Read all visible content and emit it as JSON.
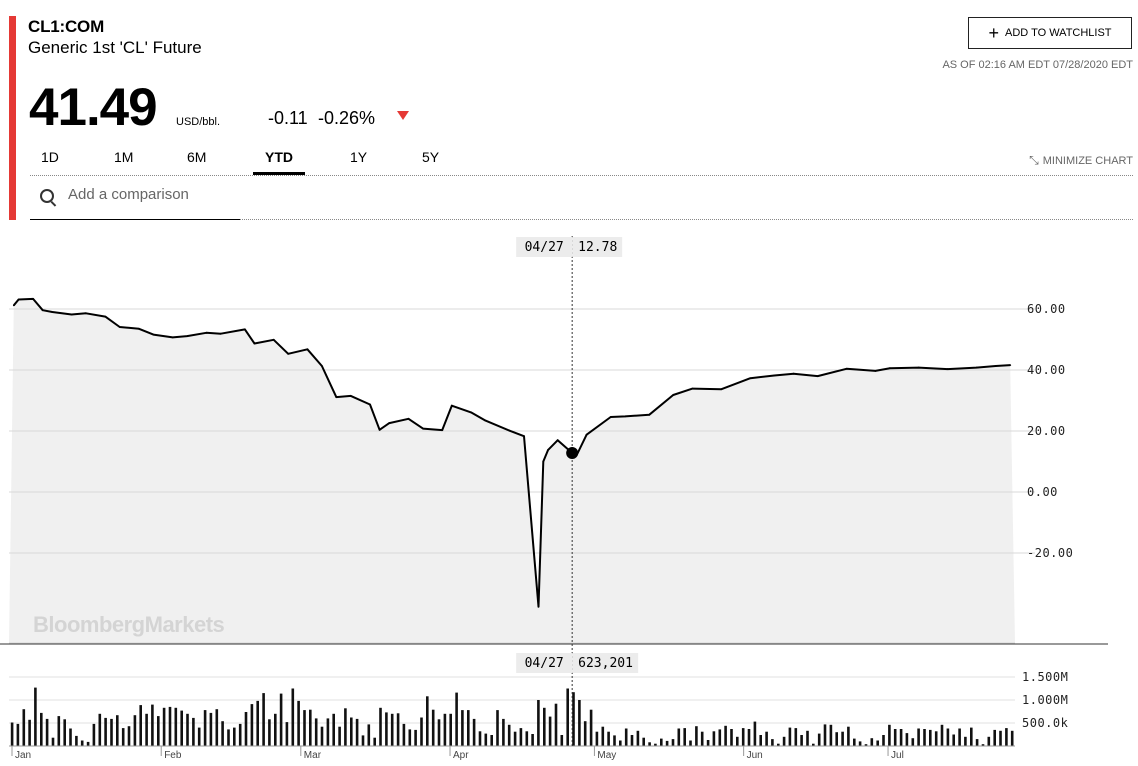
{
  "header": {
    "ticker": "CL1:COM",
    "name": "Generic 1st 'CL' Future",
    "price": "41.49",
    "unit": "USD/bbl.",
    "change": "-0.11",
    "change_pct": "-0.26%",
    "watchlist_label": "ADD TO WATCHLIST",
    "as_of": "AS OF 02:16 AM EDT 07/28/2020 EDT"
  },
  "tabs": [
    {
      "label": "1D",
      "active": false
    },
    {
      "label": "1M",
      "active": false
    },
    {
      "label": "6M",
      "active": false
    },
    {
      "label": "YTD",
      "active": true
    },
    {
      "label": "1Y",
      "active": false
    },
    {
      "label": "5Y",
      "active": false
    }
  ],
  "minimize_label": "MINIMIZE CHART",
  "comparison": {
    "placeholder": "Add a comparison"
  },
  "watermark": "BloombergMarkets",
  "colors": {
    "accent": "#e53935",
    "line": "#000000",
    "area": "#f0f0f0"
  },
  "chart_data": [
    {
      "type": "area",
      "yticks": [
        60,
        40,
        20,
        0,
        -20
      ],
      "ytick_labels": [
        "60.00",
        "40.00",
        "20.00",
        "0.00",
        "-20.00"
      ],
      "ylim": [
        -48,
        76
      ],
      "xtick_labels": [
        "Jan",
        "Feb",
        "Mar",
        "Apr",
        "May",
        "Jun",
        "Jul"
      ],
      "tooltip": {
        "date": "04/27",
        "value": "12.78"
      },
      "grid": true,
      "series": [
        {
          "x": [
            "01/02",
            "01/03",
            "01/06",
            "01/08",
            "01/10",
            "01/14",
            "01/17",
            "01/21",
            "01/24",
            "01/28",
            "01/31",
            "02/04",
            "02/07",
            "02/11",
            "02/14",
            "02/19",
            "02/21",
            "02/25",
            "02/28",
            "03/03",
            "03/06",
            "03/09",
            "03/12",
            "03/16",
            "03/18",
            "03/20",
            "03/24",
            "03/27",
            "03/31",
            "04/02",
            "04/06",
            "04/09",
            "04/14",
            "04/17",
            "04/20",
            "04/21",
            "04/22",
            "04/24",
            "04/27",
            "04/28",
            "04/30",
            "05/05",
            "05/08",
            "05/13",
            "05/18",
            "05/22",
            "05/28",
            "06/03",
            "06/08",
            "06/12",
            "06/17",
            "06/23",
            "06/29",
            "07/02",
            "07/08",
            "07/14",
            "07/20",
            "07/24",
            "07/27"
          ],
          "values": [
            61.2,
            63.1,
            63.3,
            59.6,
            59.0,
            58.2,
            58.6,
            57.5,
            54.1,
            53.5,
            51.6,
            50.7,
            51.1,
            52.2,
            51.9,
            53.3,
            48.7,
            49.9,
            45.3,
            46.8,
            41.3,
            31.1,
            31.5,
            28.7,
            20.4,
            22.6,
            24.0,
            20.8,
            20.3,
            28.3,
            26.1,
            23.4,
            20.1,
            18.3,
            -37.6,
            10.0,
            13.8,
            17.0,
            12.8,
            12.3,
            18.8,
            24.6,
            24.8,
            25.3,
            31.8,
            33.9,
            33.7,
            37.3,
            38.2,
            38.8,
            38.0,
            40.4,
            39.7,
            40.6,
            40.8,
            40.3,
            40.8,
            41.3,
            41.6
          ]
        }
      ]
    },
    {
      "type": "bar",
      "yticks": [
        1500000,
        1000000,
        500000
      ],
      "ytick_labels": [
        "1.500M",
        "1.000M",
        "500.0k"
      ],
      "ylim": [
        0,
        1800000
      ],
      "tooltip": {
        "date": "04/27",
        "value": "623,201"
      },
      "series": [
        {
          "name": "Volume",
          "values": [
            510000,
            480000,
            800000,
            570000,
            1270000,
            720000,
            590000,
            180000,
            650000,
            580000,
            380000,
            220000,
            120000,
            90000,
            480000,
            700000,
            610000,
            590000,
            670000,
            390000,
            430000,
            670000,
            890000,
            700000,
            900000,
            650000,
            830000,
            850000,
            830000,
            770000,
            700000,
            610000,
            400000,
            780000,
            720000,
            800000,
            540000,
            360000,
            400000,
            480000,
            740000,
            910000,
            980000,
            1150000,
            580000,
            700000,
            1140000,
            520000,
            1250000,
            980000,
            780000,
            790000,
            600000,
            420000,
            600000,
            700000,
            420000,
            820000,
            620000,
            590000,
            230000,
            470000,
            180000,
            830000,
            730000,
            700000,
            710000,
            480000,
            360000,
            350000,
            620000,
            1080000,
            790000,
            580000,
            700000,
            700000,
            1160000,
            780000,
            780000,
            590000,
            320000,
            270000,
            240000,
            780000,
            590000,
            460000,
            310000,
            390000,
            320000,
            260000,
            1000000,
            830000,
            640000,
            920000,
            240000,
            1250000,
            1170000,
            1000000,
            540000,
            790000,
            310000,
            420000,
            310000,
            230000,
            120000,
            380000,
            240000,
            330000,
            180000,
            80000,
            50000,
            160000,
            110000,
            150000,
            380000,
            390000,
            120000,
            430000,
            310000,
            130000,
            320000,
            360000,
            440000,
            370000,
            200000,
            390000,
            370000,
            530000,
            240000,
            310000,
            150000,
            50000,
            200000,
            400000,
            390000,
            240000,
            330000,
            50000,
            270000,
            470000,
            460000,
            300000,
            310000,
            420000,
            160000,
            100000,
            40000,
            170000,
            120000,
            240000,
            460000,
            370000,
            370000,
            280000,
            170000,
            380000,
            370000,
            350000,
            320000,
            460000,
            380000,
            250000,
            380000,
            200000,
            400000,
            150000,
            40000,
            200000,
            350000,
            330000,
            390000,
            330000
          ]
        }
      ]
    }
  ]
}
